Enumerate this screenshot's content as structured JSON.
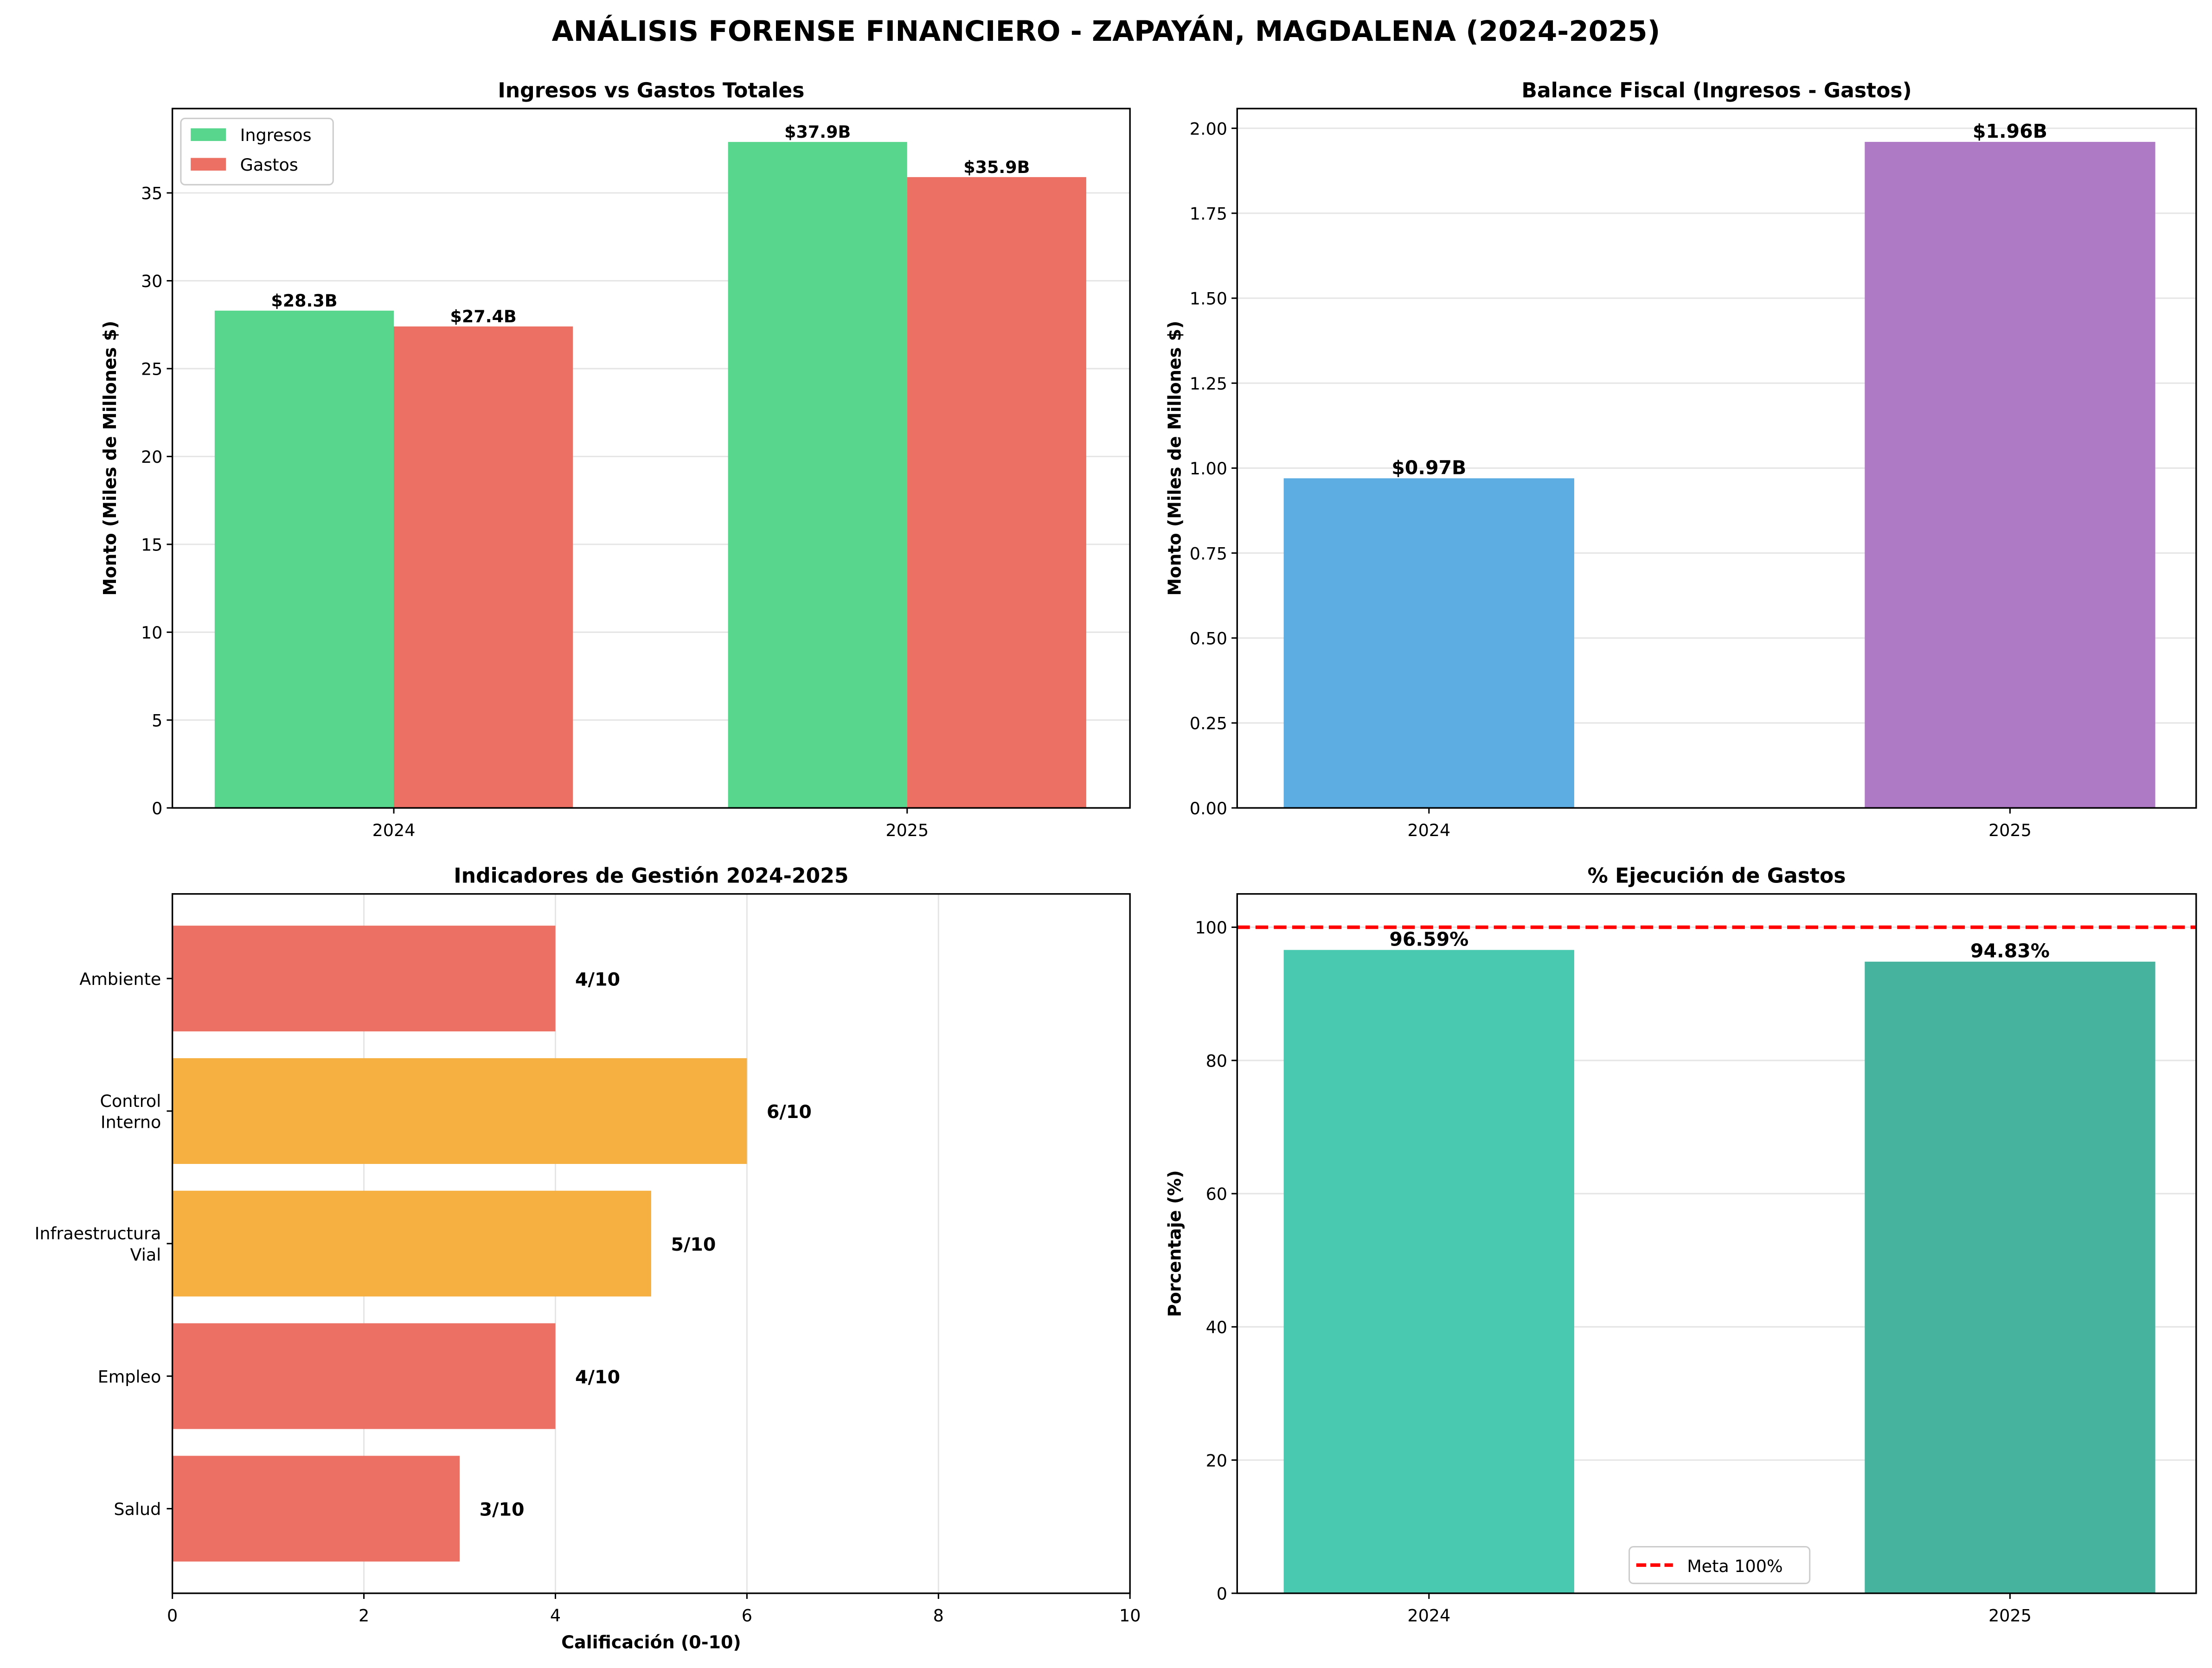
{
  "title": "ANÁLISIS FORENSE FINANCIERO - ZAPAYÁN, MAGDALENA (2024-2025)",
  "chart_data": [
    {
      "type": "bar",
      "title": "Ingresos vs Gastos Totales",
      "xlabel": "",
      "ylabel": "Monto (Miles de Millones $)",
      "categories": [
        "2024",
        "2025"
      ],
      "series": [
        {
          "name": "Ingresos",
          "values": [
            28.3,
            37.9
          ],
          "labels": [
            "$28.3B",
            "$37.9B"
          ],
          "color": "#58d68d"
        },
        {
          "name": "Gastos",
          "values": [
            27.4,
            35.9
          ],
          "labels": [
            "$27.4B",
            "$35.9B"
          ],
          "color": "#ec7063"
        }
      ],
      "ylim": [
        0,
        39.8
      ],
      "yticks": [
        0,
        5,
        10,
        15,
        20,
        25,
        30,
        35
      ],
      "grid": "y",
      "legend": "top-left"
    },
    {
      "type": "bar",
      "title": "Balance Fiscal (Ingresos - Gastos)",
      "xlabel": "",
      "ylabel": "Monto (Miles de Millones $)",
      "categories": [
        "2024",
        "2025"
      ],
      "values": [
        0.97,
        1.96
      ],
      "labels": [
        "$0.97B",
        "$1.96B"
      ],
      "colors": [
        "#5dade2",
        "#af7ac5"
      ],
      "ylim": [
        0,
        2.058
      ],
      "yticks": [
        "0.00",
        "0.25",
        "0.50",
        "0.75",
        "1.00",
        "1.25",
        "1.50",
        "1.75",
        "2.00"
      ],
      "grid": "y"
    },
    {
      "type": "barh",
      "title": "Indicadores de Gestión 2024-2025",
      "xlabel": "Calificación (0-10)",
      "ylabel": "",
      "categories": [
        [
          "Salud"
        ],
        [
          "Empleo"
        ],
        [
          "Infraestructura",
          "Vial"
        ],
        [
          "Control",
          "Interno"
        ],
        [
          "Ambiente"
        ]
      ],
      "values": [
        3,
        4,
        5,
        6,
        4
      ],
      "labels": [
        "3/10",
        "4/10",
        "5/10",
        "6/10",
        "4/10"
      ],
      "colors": [
        "#ec7063",
        "#ec7063",
        "#f5b041",
        "#f5b041",
        "#ec7063"
      ],
      "xlim": [
        0,
        10
      ],
      "xticks": [
        0,
        2,
        4,
        6,
        8,
        10
      ],
      "grid": "x"
    },
    {
      "type": "bar",
      "title": "% Ejecución de Gastos",
      "xlabel": "",
      "ylabel": "Porcentaje (%)",
      "categories": [
        "2024",
        "2025"
      ],
      "values": [
        96.59,
        94.83
      ],
      "labels": [
        "96.59%",
        "94.83%"
      ],
      "colors": [
        "#48c9b0",
        "#45b39d"
      ],
      "ylim": [
        0,
        105
      ],
      "yticks": [
        0,
        20,
        40,
        60,
        80,
        100
      ],
      "reference_line": {
        "value": 100,
        "label": "Meta 100%",
        "color": "#ff0000",
        "style": "dashed"
      },
      "grid": "y",
      "legend": "bottom-center"
    }
  ]
}
